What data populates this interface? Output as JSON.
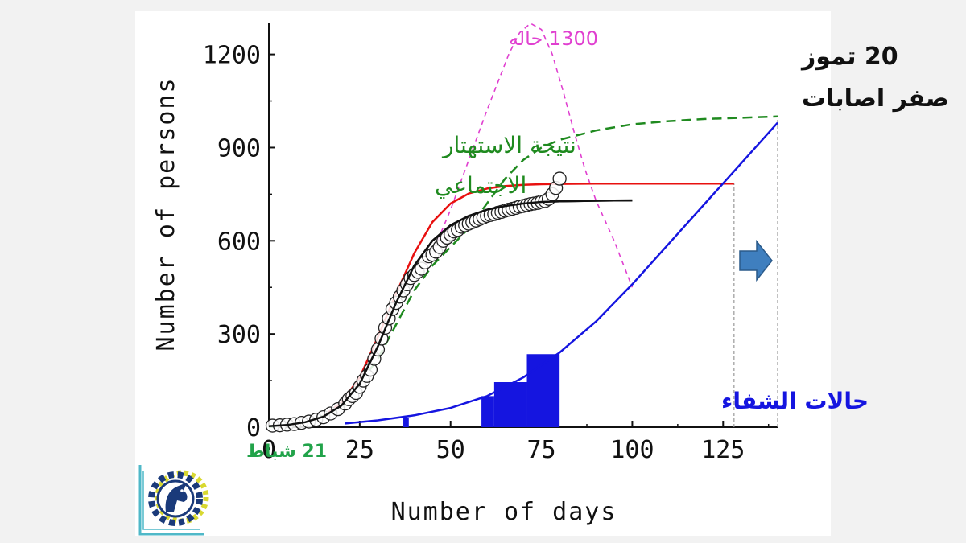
{
  "colors": {
    "page_background": "#f2f2f2",
    "card_background": "#ffffff",
    "red_fit": "#e8100f",
    "black_fit": "#111111",
    "green_dashed": "#1f8a1f",
    "magenta_dashed": "#e040d0",
    "blue_recovered": "#1515e0",
    "arrow": "#3f7fbf",
    "date_green": "#22a34a"
  },
  "chart_data": {
    "type": "line",
    "xlabel": "Number of days",
    "ylabel": "Number of persons",
    "xlim": [
      0,
      140
    ],
    "ylim": [
      0,
      1300
    ],
    "x_ticks": [
      0,
      25,
      50,
      75,
      100,
      125
    ],
    "y_ticks": [
      0,
      300,
      600,
      900,
      1200
    ],
    "grid": false,
    "series": [
      {
        "kind": "scatter-open-circles",
        "x": [
          1,
          3,
          5,
          7,
          9,
          11,
          13,
          15,
          17,
          19,
          21,
          22,
          23,
          24,
          25,
          26,
          27,
          28,
          29,
          30,
          31,
          32,
          33,
          34,
          35,
          36,
          37,
          38,
          39,
          40,
          41,
          42,
          43,
          44,
          45,
          46,
          47,
          48,
          49,
          50,
          51,
          52,
          53,
          54,
          55,
          56,
          57,
          58,
          59,
          60,
          61,
          62,
          63,
          64,
          65,
          66,
          67,
          68,
          69,
          70,
          71,
          72,
          73,
          74,
          75,
          76,
          77,
          78,
          79,
          80
        ],
        "y": [
          5,
          6,
          8,
          10,
          14,
          18,
          24,
          32,
          44,
          58,
          76,
          90,
          100,
          110,
          130,
          150,
          165,
          185,
          220,
          250,
          285,
          320,
          350,
          380,
          400,
          420,
          440,
          460,
          480,
          490,
          500,
          510,
          530,
          550,
          555,
          565,
          580,
          600,
          610,
          620,
          630,
          635,
          645,
          650,
          655,
          660,
          665,
          670,
          675,
          680,
          683,
          686,
          690,
          693,
          697,
          700,
          703,
          706,
          710,
          712,
          715,
          718,
          720,
          722,
          726,
          728,
          735,
          750,
          770,
          800
        ]
      },
      {
        "kind": "red-fit-line",
        "x": [
          0,
          5,
          10,
          15,
          20,
          25,
          30,
          35,
          40,
          45,
          50,
          55,
          60,
          65,
          70,
          75,
          80,
          90,
          100,
          110,
          120,
          128
        ],
        "y": [
          2,
          6,
          15,
          36,
          80,
          160,
          290,
          430,
          560,
          660,
          720,
          752,
          768,
          776,
          780,
          782,
          783,
          784,
          784,
          784,
          784,
          784
        ]
      },
      {
        "kind": "black-fit-line",
        "x": [
          0,
          5,
          10,
          15,
          20,
          25,
          30,
          35,
          40,
          45,
          50,
          55,
          60,
          65,
          70,
          75,
          80,
          90,
          100
        ],
        "y": [
          3,
          7,
          16,
          34,
          70,
          140,
          260,
          400,
          520,
          600,
          650,
          680,
          700,
          712,
          720,
          725,
          727,
          729,
          730
        ]
      },
      {
        "name": "نتيجة الاستهتار الاجتماعي",
        "kind": "green-dashed",
        "x": [
          0,
          10,
          20,
          30,
          35,
          40,
          45,
          50,
          55,
          60,
          65,
          70,
          75,
          80,
          90,
          100,
          110,
          120,
          130,
          140
        ],
        "y": [
          0,
          15,
          60,
          220,
          330,
          440,
          520,
          580,
          640,
          720,
          800,
          860,
          900,
          925,
          955,
          975,
          985,
          992,
          996,
          1000
        ]
      },
      {
        "name": "1300 حاله",
        "kind": "magenta-dashed",
        "x": [
          42,
          45,
          50,
          55,
          60,
          63,
          66,
          69,
          72,
          75,
          78,
          81,
          84,
          87,
          90,
          95,
          100
        ],
        "y": [
          500,
          560,
          700,
          860,
          1020,
          1110,
          1200,
          1270,
          1300,
          1280,
          1200,
          1080,
          950,
          830,
          730,
          600,
          450
        ]
      },
      {
        "name": "حالات الشفاء",
        "kind": "blue-curve",
        "x": [
          21,
          30,
          40,
          50,
          60,
          70,
          80,
          90,
          100,
          110,
          120,
          130,
          140
        ],
        "y": [
          12,
          22,
          38,
          62,
          100,
          160,
          240,
          340,
          460,
          590,
          720,
          850,
          980
        ]
      }
    ],
    "recovery_bars": [
      {
        "x_from": 37,
        "x_to": 38.5,
        "y": 30
      },
      {
        "x_from": 58.5,
        "x_to": 62,
        "y": 100
      },
      {
        "x_from": 62,
        "x_to": 71,
        "y": 145
      },
      {
        "x_from": 71,
        "x_to": 80,
        "y": 235
      }
    ],
    "reference_lines_x": [
      128,
      140
    ],
    "annotations": {
      "peak_label": "1300 حاله",
      "zero_date_line1": "20 تموز",
      "zero_date_line2": "صفر اصابات",
      "green_label_line1": "نتيجة الاستهتار",
      "green_label_line2": "الاجتماعي",
      "recovered_label": "حالات الشفاء",
      "start_date": "21 شباط"
    }
  },
  "logo": {
    "icon": "gear-horse-logo-icon"
  },
  "arrow": {
    "icon": "right-arrow-icon"
  }
}
